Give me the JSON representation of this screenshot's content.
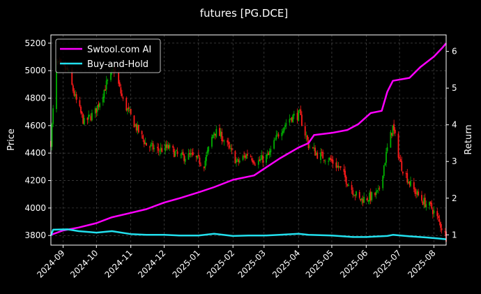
{
  "chart_data": {
    "type": "candlestick+line",
    "title": "futures [PG.DCE]",
    "ylabel_left": "Price",
    "ylabel_right": "Return",
    "xlabel": "",
    "xticks": [
      "2024-09",
      "2024-10",
      "2024-11",
      "2024-12",
      "2025-01",
      "2025-02",
      "2025-03",
      "2025-04",
      "2025-05",
      "2025-06",
      "2025-07",
      "2025-08"
    ],
    "x_range": [
      "2024-08-21",
      "2025-08-12"
    ],
    "yticks_left": [
      3800,
      4000,
      4200,
      4400,
      4600,
      4800,
      5000,
      5200
    ],
    "ylim_left": [
      3730,
      5260
    ],
    "yticks_right": [
      1,
      2,
      3,
      4,
      5,
      6
    ],
    "ylim_right": [
      0.72,
      6.45
    ],
    "grid": true,
    "legend_position": "top-left",
    "colors": {
      "up": "#00b000",
      "down": "#ff1a1a",
      "grid": "#555555"
    },
    "price_anchors": [
      [
        "2024-08-21",
        4480
      ],
      [
        "2024-08-26",
        5050
      ],
      [
        "2024-09-05",
        5000
      ],
      [
        "2024-09-12",
        4800
      ],
      [
        "2024-09-20",
        4620
      ],
      [
        "2024-09-30",
        4700
      ],
      [
        "2024-10-10",
        4900
      ],
      [
        "2024-10-17",
        5010
      ],
      [
        "2024-10-25",
        4780
      ],
      [
        "2024-11-05",
        4600
      ],
      [
        "2024-11-15",
        4460
      ],
      [
        "2024-11-25",
        4420
      ],
      [
        "2024-12-05",
        4440
      ],
      [
        "2024-12-15",
        4370
      ],
      [
        "2024-12-25",
        4380
      ],
      [
        "2025-01-06",
        4320
      ],
      [
        "2025-01-15",
        4560
      ],
      [
        "2025-01-22",
        4520
      ],
      [
        "2025-02-05",
        4330
      ],
      [
        "2025-02-15",
        4400
      ],
      [
        "2025-02-22",
        4330
      ],
      [
        "2025-03-05",
        4380
      ],
      [
        "2025-03-15",
        4560
      ],
      [
        "2025-03-25",
        4660
      ],
      [
        "2025-04-02",
        4680
      ],
      [
        "2025-04-10",
        4460
      ],
      [
        "2025-04-18",
        4390
      ],
      [
        "2025-04-28",
        4360
      ],
      [
        "2025-05-08",
        4290
      ],
      [
        "2025-05-18",
        4150
      ],
      [
        "2025-05-26",
        4060
      ],
      [
        "2025-06-05",
        4080
      ],
      [
        "2025-06-12",
        4110
      ],
      [
        "2025-06-20",
        4430
      ],
      [
        "2025-06-25",
        4590
      ],
      [
        "2025-07-02",
        4320
      ],
      [
        "2025-07-12",
        4150
      ],
      [
        "2025-07-22",
        4050
      ],
      [
        "2025-07-30",
        4000
      ],
      [
        "2025-08-05",
        3910
      ],
      [
        "2025-08-12",
        3790
      ]
    ],
    "series": [
      {
        "name": "Swtool.com AI",
        "color": "#ff00ff",
        "points": [
          [
            "2024-08-21",
            1.0
          ],
          [
            "2024-09-01",
            1.12
          ],
          [
            "2024-09-15",
            1.2
          ],
          [
            "2024-10-01",
            1.32
          ],
          [
            "2024-10-15",
            1.48
          ],
          [
            "2024-11-01",
            1.6
          ],
          [
            "2024-11-15",
            1.7
          ],
          [
            "2024-12-01",
            1.88
          ],
          [
            "2024-12-15",
            2.0
          ],
          [
            "2025-01-01",
            2.16
          ],
          [
            "2025-01-15",
            2.3
          ],
          [
            "2025-02-01",
            2.5
          ],
          [
            "2025-02-20",
            2.62
          ],
          [
            "2025-03-01",
            2.8
          ],
          [
            "2025-03-15",
            3.08
          ],
          [
            "2025-04-01",
            3.38
          ],
          [
            "2025-04-10",
            3.5
          ],
          [
            "2025-04-15",
            3.72
          ],
          [
            "2025-05-01",
            3.78
          ],
          [
            "2025-05-15",
            3.86
          ],
          [
            "2025-05-25",
            4.02
          ],
          [
            "2025-06-05",
            4.32
          ],
          [
            "2025-06-15",
            4.38
          ],
          [
            "2025-06-20",
            4.9
          ],
          [
            "2025-06-25",
            5.2
          ],
          [
            "2025-07-10",
            5.28
          ],
          [
            "2025-07-20",
            5.58
          ],
          [
            "2025-08-01",
            5.86
          ],
          [
            "2025-08-08",
            6.08
          ],
          [
            "2025-08-12",
            6.22
          ]
        ]
      },
      {
        "name": "Buy-and-Hold",
        "color": "#22e0ee",
        "points": [
          [
            "2024-08-21",
            0.98
          ],
          [
            "2024-08-23",
            1.14
          ],
          [
            "2024-09-05",
            1.15
          ],
          [
            "2024-09-15",
            1.1
          ],
          [
            "2024-10-01",
            1.06
          ],
          [
            "2024-10-15",
            1.1
          ],
          [
            "2024-11-01",
            1.02
          ],
          [
            "2024-11-15",
            1.0
          ],
          [
            "2024-12-01",
            1.0
          ],
          [
            "2024-12-15",
            0.98
          ],
          [
            "2025-01-01",
            0.98
          ],
          [
            "2025-01-15",
            1.03
          ],
          [
            "2025-02-01",
            0.97
          ],
          [
            "2025-02-15",
            0.98
          ],
          [
            "2025-03-01",
            0.98
          ],
          [
            "2025-03-15",
            1.0
          ],
          [
            "2025-04-01",
            1.03
          ],
          [
            "2025-04-10",
            1.0
          ],
          [
            "2025-05-01",
            0.98
          ],
          [
            "2025-05-20",
            0.94
          ],
          [
            "2025-06-01",
            0.94
          ],
          [
            "2025-06-20",
            0.97
          ],
          [
            "2025-06-25",
            1.0
          ],
          [
            "2025-07-10",
            0.96
          ],
          [
            "2025-07-25",
            0.93
          ],
          [
            "2025-08-05",
            0.9
          ],
          [
            "2025-08-12",
            0.88
          ]
        ]
      }
    ]
  }
}
